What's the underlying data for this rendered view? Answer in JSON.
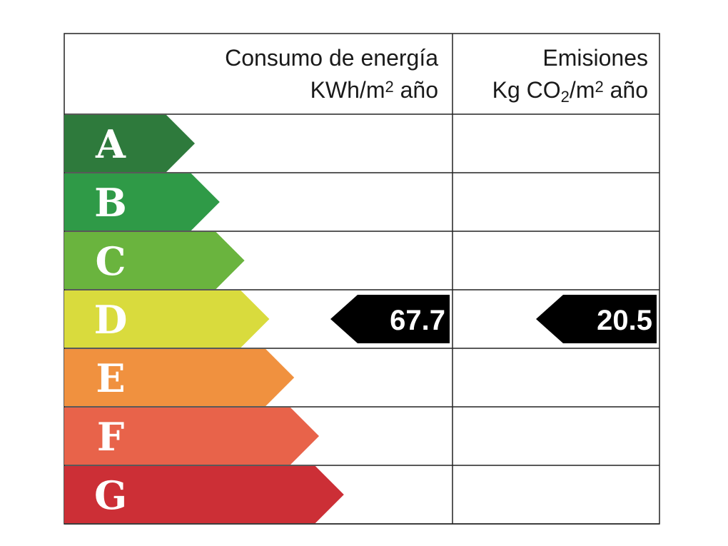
{
  "header": {
    "consumption": {
      "line1": "Consumo de energía",
      "line2": [
        "KWh/m",
        "2",
        " año"
      ]
    },
    "emissions": {
      "line1": "Emisiones",
      "line2": [
        "Kg CO",
        "2",
        "/m",
        "2",
        " año"
      ]
    }
  },
  "rows": [
    {
      "letter": "A",
      "color": "#2e7a3c"
    },
    {
      "letter": "B",
      "color": "#2f9a47"
    },
    {
      "letter": "C",
      "color": "#6ab43e"
    },
    {
      "letter": "D",
      "color": "#d9db3d",
      "consumption": 67.7,
      "emissions": 20.5
    },
    {
      "letter": "E",
      "color": "#f0913f"
    },
    {
      "letter": "F",
      "color": "#e8634a"
    },
    {
      "letter": "G",
      "color": "#cc2f36"
    }
  ]
}
